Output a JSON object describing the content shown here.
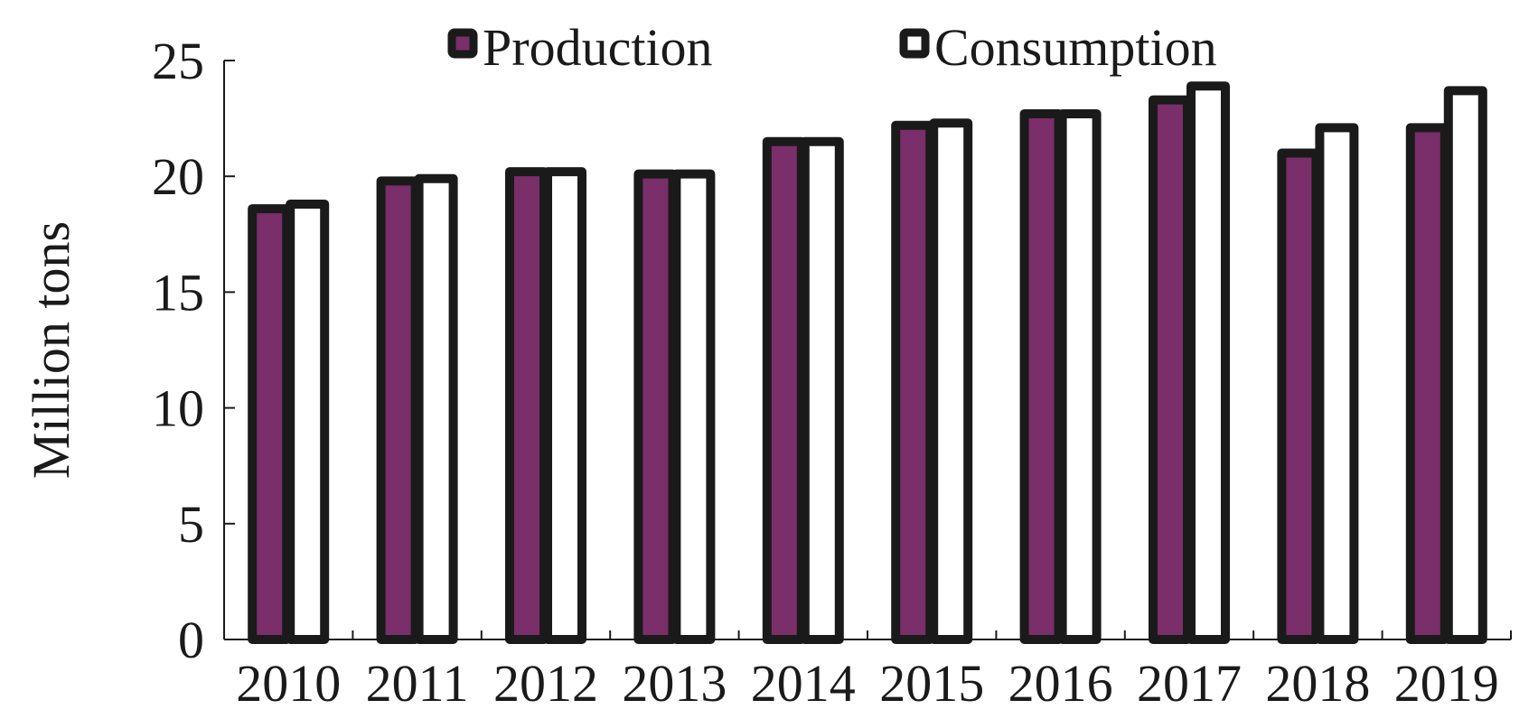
{
  "chart_data": {
    "type": "bar",
    "categories": [
      "2010",
      "2011",
      "2012",
      "2013",
      "2014",
      "2015",
      "2016",
      "2017",
      "2018",
      "2019"
    ],
    "series": [
      {
        "name": "Production",
        "values": [
          18.6,
          19.8,
          20.2,
          20.1,
          21.5,
          22.2,
          22.7,
          23.3,
          21.0,
          22.1
        ]
      },
      {
        "name": "Consumption",
        "values": [
          18.8,
          19.9,
          20.2,
          20.1,
          21.5,
          22.3,
          22.7,
          23.9,
          22.1,
          23.7
        ]
      }
    ],
    "ylabel": "Million tons",
    "ylim": [
      0,
      25
    ],
    "yticks": [
      "0",
      "5",
      "10",
      "15",
      "20",
      "25"
    ],
    "grid": false,
    "legend_position": "top",
    "colors": {
      "Production": "#7a2e6a",
      "Consumption": "#ffffff",
      "outline": "#1a1a1a"
    }
  }
}
